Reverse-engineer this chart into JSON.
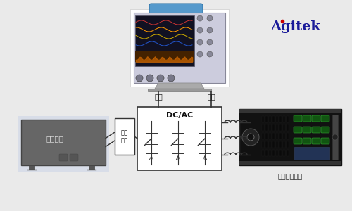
{
  "bg_color": "#eaeaea",
  "title_color_main": "#1a1a99",
  "title_color_dot": "#cc0000",
  "dc_power_label": "直流电源",
  "dc_motor_label": "直流\n电机",
  "dcac_label": "DC/AC",
  "voltage_label": "电压",
  "current_label": "电流",
  "ac_load_label": "交流电子负载",
  "line_color": "#333333",
  "osc_body_color": "#e0e0e8",
  "osc_handle_color": "#5599cc",
  "osc_screen_color": "#111122",
  "dc_power_fill": "#666666",
  "dc_power_edge": "#444444",
  "dc_power_text": "#dddddd",
  "motor_fill": "#ffffff",
  "motor_edge": "#333333",
  "dcac_fill": "#ffffff",
  "dcac_edge": "#333333",
  "ac_load_fill": "#1a1a1a",
  "ac_load_edge": "#111111"
}
